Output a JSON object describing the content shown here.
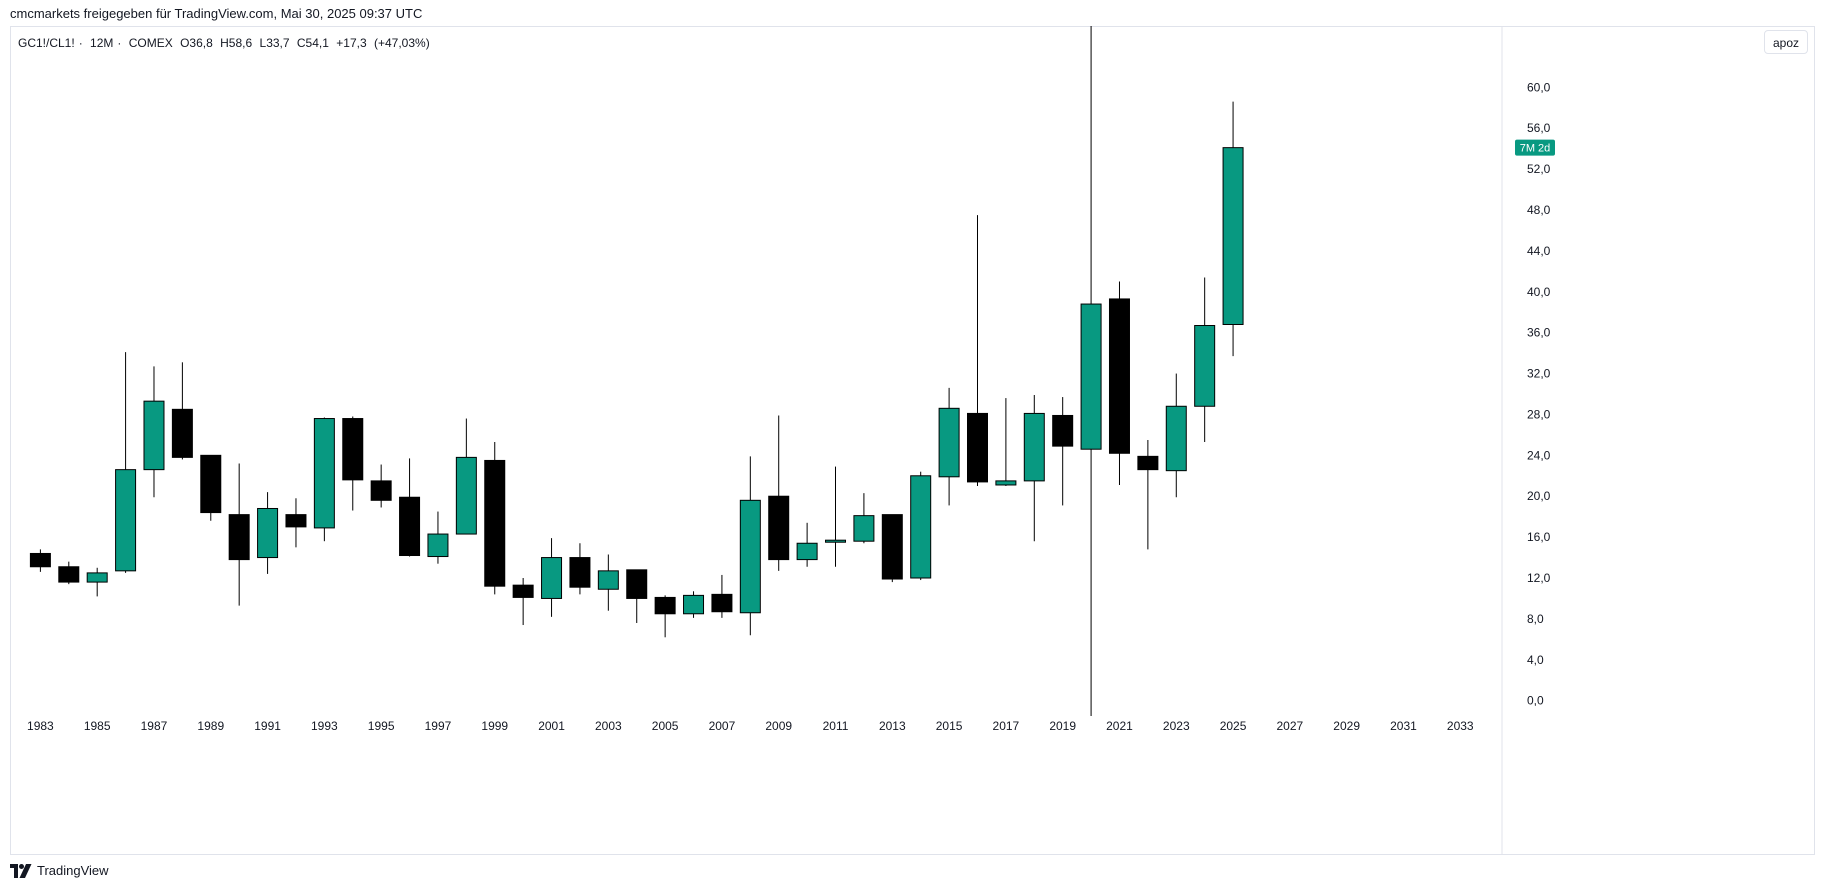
{
  "header": {
    "attribution": "cmcmarkets freigegeben für TradingView.com, Mai 30, 2025 09:37 UTC"
  },
  "legend": {
    "symbol": "GC1!/CL1!",
    "interval": "12M",
    "exchange": "COMEX",
    "open": "O36,8",
    "high": "H58,6",
    "low": "L33,7",
    "close": "C54,1",
    "change": "+17,3",
    "change_pct": "(+47,03%)"
  },
  "toolbar": {
    "apoz_label": "apoz"
  },
  "countdown": {
    "label": "7M 2d",
    "value": 54.1
  },
  "footer": {
    "brand": "TradingView"
  },
  "colors": {
    "up": "#089981",
    "down": "#000000",
    "outline": "#000000",
    "badge": "#089981"
  },
  "chart_data": {
    "type": "candlestick",
    "ylim": [
      -1.5,
      66
    ],
    "ytick_labels": [
      "0,0",
      "4,0",
      "8,0",
      "12,0",
      "16,0",
      "20,0",
      "24,0",
      "28,0",
      "32,0",
      "36,0",
      "40,0",
      "44,0",
      "48,0",
      "52,0",
      "56,0",
      "60,0"
    ],
    "ytick_values": [
      0,
      4,
      8,
      12,
      16,
      20,
      24,
      28,
      32,
      36,
      40,
      44,
      48,
      52,
      56,
      60
    ],
    "xtick_labels": [
      "1983",
      "1985",
      "1987",
      "1989",
      "1991",
      "1993",
      "1995",
      "1997",
      "1999",
      "2001",
      "2003",
      "2005",
      "2007",
      "2009",
      "2011",
      "2013",
      "2015",
      "2017",
      "2019",
      "2021",
      "2023",
      "2025",
      "2027",
      "2029",
      "2031",
      "2033"
    ],
    "xlim": [
      1982,
      2034.4
    ],
    "candles": [
      {
        "year": 1983,
        "open": 14.4,
        "high": 14.8,
        "low": 12.6,
        "close": 13.1
      },
      {
        "year": 1984,
        "open": 13.1,
        "high": 13.6,
        "low": 11.4,
        "close": 11.6
      },
      {
        "year": 1985,
        "open": 11.6,
        "high": 13.0,
        "low": 10.2,
        "close": 12.5
      },
      {
        "year": 1986,
        "open": 12.7,
        "high": 34.1,
        "low": 12.5,
        "close": 22.6
      },
      {
        "year": 1987,
        "open": 22.6,
        "high": 32.7,
        "low": 19.9,
        "close": 29.3
      },
      {
        "year": 1988,
        "open": 28.5,
        "high": 33.1,
        "low": 23.6,
        "close": 23.8
      },
      {
        "year": 1989,
        "open": 24.0,
        "high": 24.0,
        "low": 17.6,
        "close": 18.4
      },
      {
        "year": 1990,
        "open": 18.2,
        "high": 23.2,
        "low": 9.3,
        "close": 13.8
      },
      {
        "year": 1991,
        "open": 14.0,
        "high": 20.4,
        "low": 12.4,
        "close": 18.8
      },
      {
        "year": 1992,
        "open": 18.2,
        "high": 19.8,
        "low": 15.0,
        "close": 17.0
      },
      {
        "year": 1993,
        "open": 16.9,
        "high": 27.7,
        "low": 15.6,
        "close": 27.6
      },
      {
        "year": 1994,
        "open": 27.6,
        "high": 27.8,
        "low": 18.6,
        "close": 21.6
      },
      {
        "year": 1995,
        "open": 21.5,
        "high": 23.1,
        "low": 18.9,
        "close": 19.6
      },
      {
        "year": 1996,
        "open": 19.9,
        "high": 23.7,
        "low": 14.1,
        "close": 14.2
      },
      {
        "year": 1997,
        "open": 14.1,
        "high": 18.5,
        "low": 13.4,
        "close": 16.3
      },
      {
        "year": 1998,
        "open": 16.3,
        "high": 27.6,
        "low": 16.3,
        "close": 23.8
      },
      {
        "year": 1999,
        "open": 23.5,
        "high": 25.3,
        "low": 10.4,
        "close": 11.2
      },
      {
        "year": 2000,
        "open": 11.3,
        "high": 12.0,
        "low": 7.4,
        "close": 10.1
      },
      {
        "year": 2001,
        "open": 10.0,
        "high": 15.9,
        "low": 8.2,
        "close": 14.0
      },
      {
        "year": 2002,
        "open": 14.0,
        "high": 15.4,
        "low": 10.4,
        "close": 11.1
      },
      {
        "year": 2003,
        "open": 10.9,
        "high": 14.3,
        "low": 8.8,
        "close": 12.7
      },
      {
        "year": 2004,
        "open": 12.8,
        "high": 12.8,
        "low": 7.6,
        "close": 10.0
      },
      {
        "year": 2005,
        "open": 10.1,
        "high": 10.3,
        "low": 6.2,
        "close": 8.5
      },
      {
        "year": 2006,
        "open": 8.5,
        "high": 10.7,
        "low": 8.1,
        "close": 10.3
      },
      {
        "year": 2007,
        "open": 10.4,
        "high": 12.3,
        "low": 8.1,
        "close": 8.7
      },
      {
        "year": 2008,
        "open": 8.6,
        "high": 23.9,
        "low": 6.4,
        "close": 19.6
      },
      {
        "year": 2009,
        "open": 20.0,
        "high": 27.9,
        "low": 12.7,
        "close": 13.8
      },
      {
        "year": 2010,
        "open": 13.8,
        "high": 17.4,
        "low": 13.1,
        "close": 15.4
      },
      {
        "year": 2011,
        "open": 15.5,
        "high": 22.9,
        "low": 13.1,
        "close": 15.7
      },
      {
        "year": 2012,
        "open": 15.6,
        "high": 20.3,
        "low": 15.4,
        "close": 18.1
      },
      {
        "year": 2013,
        "open": 18.2,
        "high": 18.2,
        "low": 11.6,
        "close": 11.9
      },
      {
        "year": 2014,
        "open": 12.0,
        "high": 22.4,
        "low": 11.8,
        "close": 22.0
      },
      {
        "year": 2015,
        "open": 21.9,
        "high": 30.6,
        "low": 19.1,
        "close": 28.6
      },
      {
        "year": 2016,
        "open": 28.1,
        "high": 47.5,
        "low": 21.0,
        "close": 21.4
      },
      {
        "year": 2017,
        "open": 21.1,
        "high": 29.6,
        "low": 21.0,
        "close": 21.5
      },
      {
        "year": 2018,
        "open": 21.5,
        "high": 29.9,
        "low": 15.6,
        "close": 28.1
      },
      {
        "year": 2019,
        "open": 27.9,
        "high": 29.7,
        "low": 19.1,
        "close": 24.9
      },
      {
        "year": 2020,
        "open": 24.6,
        "high": 66.0,
        "low": -1.5,
        "close": 38.8
      },
      {
        "year": 2021,
        "open": 39.3,
        "high": 41.0,
        "low": 21.1,
        "close": 24.2
      },
      {
        "year": 2022,
        "open": 23.9,
        "high": 25.5,
        "low": 14.8,
        "close": 22.6
      },
      {
        "year": 2023,
        "open": 22.5,
        "high": 32.0,
        "low": 19.9,
        "close": 28.8
      },
      {
        "year": 2024,
        "open": 28.8,
        "high": 41.4,
        "low": 25.3,
        "close": 36.7
      },
      {
        "year": 2025,
        "open": 36.8,
        "high": 58.6,
        "low": 33.7,
        "close": 54.1
      }
    ]
  }
}
